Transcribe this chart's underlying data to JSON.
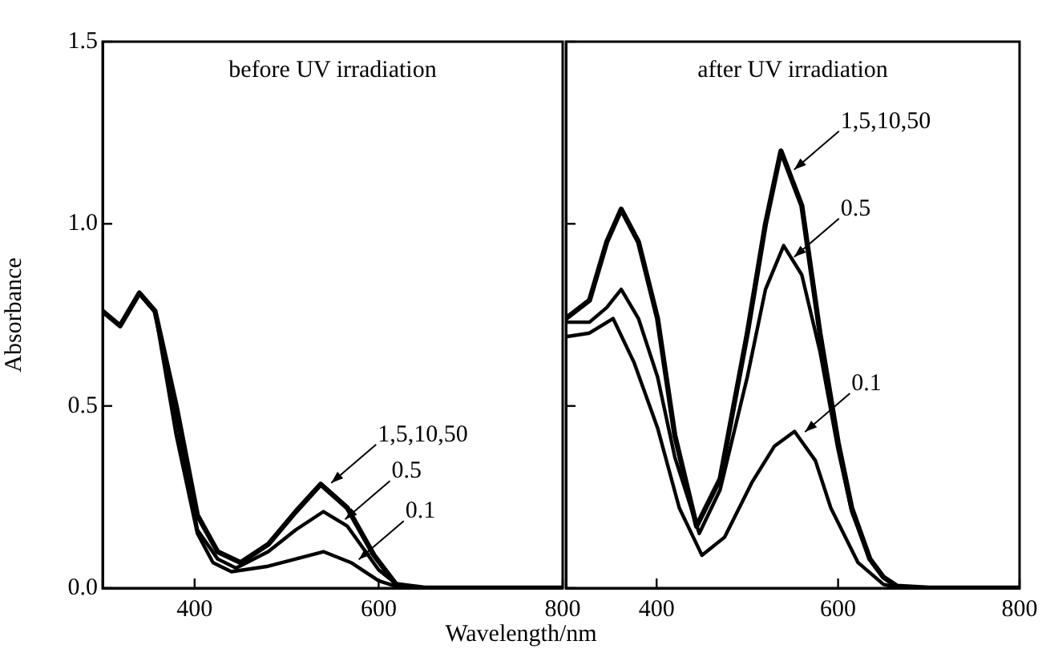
{
  "chart_data": [
    {
      "type": "line",
      "title": "before UV irradiation",
      "xlabel": "Wavelength/nm",
      "ylabel": "Absorbance",
      "xlim": [
        300,
        800
      ],
      "xticks": [
        400,
        600,
        800
      ],
      "ylim": [
        0,
        1.5
      ],
      "yticks": [
        {
          "value": 0,
          "label": "0.0"
        },
        0.5,
        {
          "value": 1,
          "label": "1.0"
        },
        1.5
      ],
      "grid": false,
      "legend": false,
      "marker": "none",
      "line_style": "solid",
      "series": [
        {
          "color": "#000000",
          "x": [
            300,
            319,
            340,
            357,
            380,
            403,
            425,
            450,
            480,
            510,
            537,
            566,
            595,
            619,
            650,
            700,
            800
          ],
          "values": [
            0.76,
            0.72,
            0.81,
            0.76,
            0.5,
            0.2,
            0.1,
            0.07,
            0.12,
            0.21,
            0.285,
            0.22,
            0.09,
            0.01,
            0,
            0,
            0
          ]
        },
        {
          "color": "#000000",
          "x": [
            300,
            319,
            340,
            357,
            380,
            403,
            425,
            445,
            480,
            510,
            540,
            566,
            600,
            620,
            650,
            700,
            800
          ],
          "values": [
            0.76,
            0.72,
            0.81,
            0.76,
            0.47,
            0.16,
            0.08,
            0.055,
            0.1,
            0.16,
            0.21,
            0.17,
            0.05,
            0.01,
            0,
            0,
            0
          ]
        },
        {
          "color": "#000000",
          "x": [
            300,
            319,
            340,
            357,
            380,
            403,
            420,
            440,
            480,
            510,
            540,
            570,
            600,
            625,
            650,
            700,
            800
          ],
          "values": [
            0.76,
            0.72,
            0.81,
            0.76,
            0.42,
            0.15,
            0.07,
            0.045,
            0.06,
            0.08,
            0.1,
            0.07,
            0.02,
            0,
            0,
            0,
            0
          ]
        }
      ],
      "annotations": [
        {
          "text": "1,5,10,50",
          "x": 545,
          "y": 0.28
        },
        {
          "text": "0.5",
          "x": 560,
          "y": 0.18
        },
        {
          "text": "0.1",
          "x": 575,
          "y": 0.07
        }
      ]
    },
    {
      "type": "line",
      "title": "after UV irradiation",
      "xlim": [
        300,
        800
      ],
      "xticks": [
        400,
        600,
        800
      ],
      "ylim": [
        0,
        1.5
      ],
      "yticks": [
        0,
        0.5,
        1,
        1.5
      ],
      "tick_labels": "x",
      "grid": false,
      "legend": false,
      "marker": "none",
      "line_style": "solid",
      "series": [
        {
          "color": "#000000",
          "x": [
            300,
            326,
            345,
            361,
            380,
            401,
            420,
            444,
            470,
            500,
            520,
            537,
            560,
            580,
            600,
            615,
            635,
            650,
            665,
            700,
            800
          ],
          "values": [
            0.74,
            0.79,
            0.95,
            1.04,
            0.95,
            0.74,
            0.42,
            0.17,
            0.3,
            0.7,
            1.0,
            1.2,
            1.05,
            0.7,
            0.4,
            0.22,
            0.08,
            0.03,
            0.005,
            0,
            0
          ]
        },
        {
          "color": "#000000",
          "x": [
            300,
            326,
            345,
            361,
            380,
            401,
            420,
            447,
            470,
            500,
            520,
            540,
            560,
            580,
            600,
            615,
            635,
            650,
            665,
            700,
            800
          ],
          "values": [
            0.73,
            0.73,
            0.77,
            0.82,
            0.74,
            0.58,
            0.36,
            0.15,
            0.27,
            0.58,
            0.82,
            0.94,
            0.86,
            0.65,
            0.38,
            0.21,
            0.08,
            0.03,
            0.005,
            0,
            0
          ]
        },
        {
          "color": "#000000",
          "x": [
            300,
            326,
            352,
            375,
            401,
            425,
            450,
            475,
            505,
            530,
            552,
            575,
            592,
            622,
            650,
            670,
            700,
            800
          ],
          "values": [
            0.69,
            0.7,
            0.74,
            0.62,
            0.44,
            0.22,
            0.09,
            0.14,
            0.29,
            0.39,
            0.43,
            0.35,
            0.22,
            0.07,
            0.01,
            0,
            0,
            0
          ]
        }
      ],
      "annotations": [
        {
          "text": "1,5,10,50",
          "x": 548,
          "y": 1.14
        },
        {
          "text": "0.5",
          "x": 548,
          "y": 0.9
        },
        {
          "text": "0.1",
          "x": 560,
          "y": 0.42
        }
      ]
    }
  ]
}
